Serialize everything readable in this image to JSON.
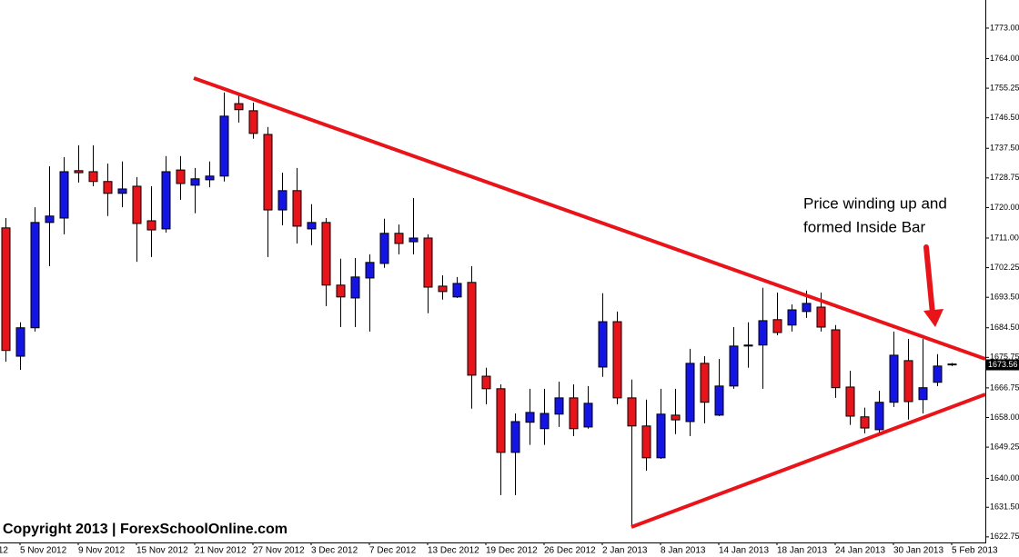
{
  "chart_data": {
    "type": "candlestick",
    "categories": [
      null,
      "5 Nov 2012",
      null,
      null,
      null,
      "9 Nov 2012",
      null,
      null,
      null,
      "15 Nov 2012",
      null,
      null,
      null,
      "21 Nov 2012",
      null,
      null,
      null,
      "27 Nov 2012",
      null,
      null,
      null,
      "3 Dec 2012",
      null,
      null,
      null,
      "7 Dec 2012",
      null,
      null,
      null,
      "13 Dec 2012",
      null,
      null,
      null,
      "19 Dec 2012",
      null,
      null,
      null,
      "26 Dec 2012",
      null,
      null,
      null,
      "2 Jan 2013",
      null,
      null,
      null,
      "8 Jan 2013",
      null,
      null,
      null,
      "14 Jan 2013",
      null,
      null,
      null,
      "18 Jan 2013",
      null,
      null,
      null,
      "24 Jan 2013",
      null,
      null,
      null,
      "30 Jan 2013",
      null,
      null,
      null,
      "5 Feb 2013"
    ],
    "partial_label": "12",
    "open": [
      1714.0,
      1676.1,
      1684.5,
      1715.6,
      1716.9,
      1730.9,
      1730.6,
      1727.7,
      1724.2,
      1726.3,
      1716.1,
      1713.7,
      1731.1,
      1726.6,
      1728.2,
      1729.3,
      1750.7,
      1748.6,
      1741.6,
      1719.3,
      1725.0,
      1713.7,
      1715.6,
      1697.1,
      1693.3,
      1699.2,
      1703.5,
      1712.4,
      1709.9,
      1711.0,
      1696.8,
      1693.6,
      1697.9,
      1670.2,
      1666.5,
      1647.7,
      1656.6,
      1654.7,
      1659.0,
      1663.8,
      1655.2,
      1672.9,
      1686.3,
      1663.8,
      1655.5,
      1646.1,
      1658.7,
      1656.8,
      1674.0,
      1658.7,
      1667.3,
      1679.1,
      1679.4,
      1686.9,
      1685.3,
      1689.3,
      1690.6,
      1683.9,
      1667.0,
      1658.2,
      1654.4,
      1662.5,
      1674.8,
      1663.3,
      1668.4,
      1673.8
    ],
    "high": [
      1716.9,
      1686.1,
      1720.1,
      1732.2,
      1734.9,
      1738.4,
      1738.4,
      1733.0,
      1733.6,
      1729.0,
      1726.3,
      1735.2,
      1735.2,
      1731.7,
      1733.6,
      1754.0,
      1753.7,
      1751.0,
      1743.8,
      1730.3,
      1731.7,
      1721.0,
      1716.9,
      1704.9,
      1705.1,
      1706.2,
      1716.7,
      1715.0,
      1722.8,
      1712.1,
      1700.0,
      1699.5,
      1702.7,
      1672.7,
      1667.8,
      1659.2,
      1666.5,
      1666.5,
      1668.6,
      1667.8,
      1667.3,
      1694.7,
      1689.3,
      1669.2,
      1663.3,
      1666.5,
      1666.5,
      1678.3,
      1676.1,
      1675.3,
      1684.7,
      1686.1,
      1696.3,
      1694.9,
      1691.4,
      1695.5,
      1694.9,
      1685.3,
      1671.8,
      1660.9,
      1665.9,
      1683.4,
      1681.2,
      1681.2,
      1676.7,
      1674.1
    ],
    "low": [
      1674.5,
      1672.1,
      1683.4,
      1702.7,
      1712.1,
      1727.4,
      1726.3,
      1717.5,
      1720.1,
      1704.0,
      1705.4,
      1712.6,
      1722.3,
      1718.3,
      1726.0,
      1727.7,
      1745.1,
      1740.3,
      1705.4,
      1714.8,
      1709.4,
      1708.9,
      1690.9,
      1684.7,
      1684.7,
      1683.4,
      1702.2,
      1706.2,
      1706.2,
      1688.8,
      1692.8,
      1693.3,
      1660.6,
      1661.9,
      1635.1,
      1635.1,
      1649.9,
      1649.9,
      1655.2,
      1652.5,
      1654.7,
      1670.0,
      1661.9,
      1625.7,
      1642.3,
      1645.8,
      1653.1,
      1652.5,
      1656.3,
      1658.4,
      1666.5,
      1672.7,
      1666.5,
      1682.3,
      1683.4,
      1687.4,
      1683.4,
      1663.8,
      1655.8,
      1653.3,
      1653.1,
      1661.1,
      1657.4,
      1659.2,
      1667.3,
      1673.2
    ],
    "close": [
      1677.8,
      1684.5,
      1715.6,
      1717.5,
      1730.6,
      1730.3,
      1727.7,
      1724.2,
      1725.5,
      1715.3,
      1713.4,
      1730.6,
      1727.1,
      1728.5,
      1729.3,
      1747.0,
      1748.9,
      1741.9,
      1719.3,
      1725.0,
      1714.5,
      1715.6,
      1697.1,
      1693.6,
      1699.5,
      1703.8,
      1712.4,
      1709.4,
      1711.0,
      1696.5,
      1695.2,
      1697.6,
      1670.5,
      1666.5,
      1647.7,
      1656.8,
      1659.5,
      1659.2,
      1663.8,
      1654.7,
      1662.2,
      1686.3,
      1663.8,
      1655.5,
      1646.1,
      1659.0,
      1657.3,
      1674.0,
      1662.5,
      1667.3,
      1679.1,
      1679.4,
      1686.6,
      1683.1,
      1689.8,
      1691.7,
      1684.7,
      1666.8,
      1658.4,
      1654.9,
      1662.5,
      1676.4,
      1662.7,
      1666.8,
      1673.2,
      1673.56
    ],
    "up_color": "#1414e6",
    "down_color": "#e8141a",
    "last_price": 1673.56,
    "ylim": [
      1621.1,
      1781.3
    ],
    "yticks": [
      {
        "value": 1773,
        "label": "1773.00"
      },
      {
        "value": 1764,
        "label": "1764.00"
      },
      {
        "value": 1755.25,
        "label": "1755.25"
      },
      {
        "value": 1746.5,
        "label": "1746.50"
      },
      {
        "value": 1737.5,
        "label": "1737.50"
      },
      {
        "value": 1728.75,
        "label": "1728.75"
      },
      {
        "value": 1720,
        "label": "1720.00"
      },
      {
        "value": 1711,
        "label": "1711.00"
      },
      {
        "value": 1702.25,
        "label": "1702.25"
      },
      {
        "value": 1693.5,
        "label": "1693.50"
      },
      {
        "value": 1684.5,
        "label": "1684.50"
      },
      {
        "value": 1675.75,
        "label": "1675.75"
      },
      {
        "value": 1666.75,
        "label": "1666.75"
      },
      {
        "value": 1658,
        "label": "1658.00"
      },
      {
        "value": 1649.25,
        "label": "1649.25"
      },
      {
        "value": 1640,
        "label": "1640.00"
      },
      {
        "value": 1631.5,
        "label": "1631.50"
      },
      {
        "value": 1622.75,
        "label": "1622.75"
      }
    ],
    "annotation": [
      "Price winding up and",
      "formed Inside Bar"
    ],
    "copyright": "Copyright 2013 | ForexSchoolOnline.com"
  }
}
